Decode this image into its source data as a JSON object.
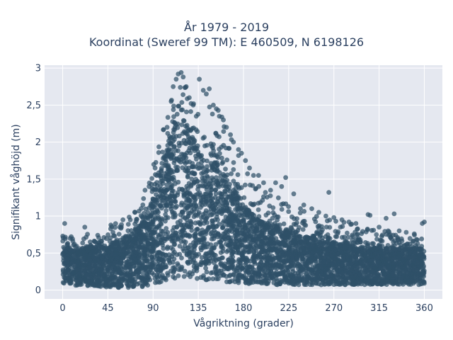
{
  "chart_data": {
    "type": "scatter",
    "title": "År 1979 - 2019",
    "subtitle": "Koordinat (Sweref 99 TM): E 460509, N 6198126",
    "xlabel": "Vågriktning (grader)",
    "ylabel": "Signifikant våghöjd (m)",
    "xlim": [
      -18,
      378
    ],
    "ylim": [
      -0.12,
      3.04
    ],
    "xticks": [
      0,
      45,
      90,
      135,
      180,
      225,
      270,
      315,
      360
    ],
    "xtick_labels": [
      "0",
      "45",
      "90",
      "135",
      "180",
      "225",
      "270",
      "315",
      "360"
    ],
    "yticks": [
      0,
      0.5,
      1,
      1.5,
      2,
      2.5,
      3
    ],
    "ytick_labels": [
      "0",
      "0,5",
      "1",
      "1,5",
      "2",
      "2,5",
      "3"
    ],
    "grid": true,
    "legend": "none",
    "colors": {
      "marker": "#2f5168",
      "plot_bg": "#e5e8f0",
      "grid": "#ffffff",
      "text": "#2a3f5f"
    },
    "envelope": {
      "description_direction_deg": [
        0,
        15,
        30,
        45,
        60,
        75,
        85,
        95,
        105,
        112,
        118,
        125,
        132,
        140,
        148,
        155,
        165,
        180,
        195,
        210,
        225,
        240,
        255,
        270,
        285,
        300,
        315,
        330,
        345,
        360
      ],
      "max_hs_m": [
        0.75,
        0.72,
        0.78,
        0.85,
        0.95,
        1.15,
        1.45,
        1.9,
        2.5,
        2.85,
        2.92,
        2.8,
        2.45,
        2.25,
        2.55,
        2.45,
        2.2,
        1.75,
        1.45,
        1.3,
        1.2,
        1.1,
        1.0,
        0.95,
        0.9,
        0.85,
        0.85,
        0.8,
        0.75,
        0.75
      ],
      "dense_upper_hs_m": [
        0.55,
        0.55,
        0.58,
        0.6,
        0.68,
        0.85,
        1.05,
        1.45,
        1.95,
        2.25,
        2.3,
        2.15,
        1.9,
        1.75,
        1.8,
        1.7,
        1.45,
        1.15,
        0.95,
        0.85,
        0.78,
        0.72,
        0.68,
        0.62,
        0.6,
        0.58,
        0.57,
        0.56,
        0.55,
        0.55
      ],
      "dense_lower_hs_m": [
        0.08,
        0.06,
        0.05,
        0.04,
        0.03,
        0.04,
        0.05,
        0.08,
        0.12,
        0.15,
        0.18,
        0.16,
        0.14,
        0.12,
        0.12,
        0.12,
        0.1,
        0.08,
        0.07,
        0.07,
        0.07,
        0.07,
        0.07,
        0.07,
        0.07,
        0.07,
        0.07,
        0.07,
        0.07,
        0.07
      ]
    },
    "outliers": [
      {
        "x": 2,
        "y": 0.9
      },
      {
        "x": 22,
        "y": 0.85
      },
      {
        "x": 48,
        "y": 0.88
      },
      {
        "x": 60,
        "y": 0.95
      },
      {
        "x": 72,
        "y": 1.05
      },
      {
        "x": 82,
        "y": 1.35
      },
      {
        "x": 86,
        "y": 1.4
      },
      {
        "x": 92,
        "y": 1.65
      },
      {
        "x": 96,
        "y": 1.55
      },
      {
        "x": 100,
        "y": 1.78
      },
      {
        "x": 104,
        "y": 2.2
      },
      {
        "x": 108,
        "y": 2.55
      },
      {
        "x": 110,
        "y": 2.75
      },
      {
        "x": 113,
        "y": 2.85
      },
      {
        "x": 115,
        "y": 2.92
      },
      {
        "x": 118,
        "y": 2.94
      },
      {
        "x": 120,
        "y": 2.88
      },
      {
        "x": 123,
        "y": 2.75
      },
      {
        "x": 126,
        "y": 2.6
      },
      {
        "x": 130,
        "y": 2.5
      },
      {
        "x": 133,
        "y": 2.35
      },
      {
        "x": 136,
        "y": 2.85
      },
      {
        "x": 140,
        "y": 2.7
      },
      {
        "x": 143,
        "y": 2.65
      },
      {
        "x": 146,
        "y": 2.72
      },
      {
        "x": 150,
        "y": 2.5
      },
      {
        "x": 153,
        "y": 2.45
      },
      {
        "x": 156,
        "y": 2.35
      },
      {
        "x": 160,
        "y": 2.3
      },
      {
        "x": 163,
        "y": 2.2
      },
      {
        "x": 167,
        "y": 2.1
      },
      {
        "x": 170,
        "y": 2.0
      },
      {
        "x": 175,
        "y": 1.9
      },
      {
        "x": 178,
        "y": 1.85
      },
      {
        "x": 182,
        "y": 1.75
      },
      {
        "x": 186,
        "y": 1.65
      },
      {
        "x": 190,
        "y": 1.55
      },
      {
        "x": 195,
        "y": 1.55
      },
      {
        "x": 200,
        "y": 1.45
      },
      {
        "x": 207,
        "y": 1.35
      },
      {
        "x": 212,
        "y": 1.45
      },
      {
        "x": 218,
        "y": 1.4
      },
      {
        "x": 222,
        "y": 1.52
      },
      {
        "x": 230,
        "y": 1.3
      },
      {
        "x": 240,
        "y": 1.15
      },
      {
        "x": 248,
        "y": 1.1
      },
      {
        "x": 255,
        "y": 1.05
      },
      {
        "x": 262,
        "y": 1.0
      },
      {
        "x": 265,
        "y": 1.32
      },
      {
        "x": 270,
        "y": 0.98
      },
      {
        "x": 278,
        "y": 0.95
      },
      {
        "x": 285,
        "y": 0.92
      },
      {
        "x": 292,
        "y": 0.9
      },
      {
        "x": 304,
        "y": 1.02
      },
      {
        "x": 306,
        "y": 1.01
      },
      {
        "x": 315,
        "y": 0.85
      },
      {
        "x": 322,
        "y": 0.97
      },
      {
        "x": 324,
        "y": 0.8
      },
      {
        "x": 330,
        "y": 1.03
      },
      {
        "x": 335,
        "y": 0.8
      },
      {
        "x": 342,
        "y": 0.78
      },
      {
        "x": 350,
        "y": 0.76
      },
      {
        "x": 358,
        "y": 0.9
      },
      {
        "x": 360,
        "y": 0.92
      }
    ]
  }
}
